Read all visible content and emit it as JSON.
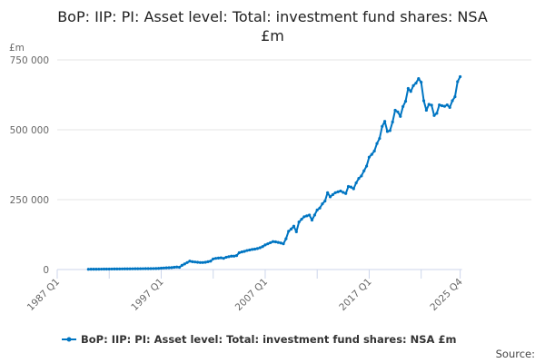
{
  "chart_data": {
    "type": "line",
    "title_lines": [
      "BoP: IIP: PI: Asset level: Total: investment fund shares: NSA",
      "£m"
    ],
    "ylabel": "£m",
    "ylim": [
      0,
      750000
    ],
    "yticks": [
      0,
      250000,
      500000,
      750000
    ],
    "ytick_labels": [
      "0",
      "250 000",
      "500 000",
      "750 000"
    ],
    "xaxis_start": "1987 Q1",
    "xaxis_end": "2025 Q4",
    "xtick_labels": [
      "1987 Q1",
      "1997 Q1",
      "2007 Q1",
      "2017 Q1",
      "2025 Q4"
    ],
    "grid": "horizontal",
    "legend_position": "bottom",
    "color": "#0075c2",
    "source_label": "Source:",
    "series": [
      {
        "name": "BoP: IIP: PI: Asset level: Total: investment fund shares: NSA £m",
        "start": "1990 Q1",
        "frequency": "quarterly",
        "values": [
          1000,
          1100,
          1200,
          1300,
          1400,
          1500,
          1600,
          1700,
          1800,
          1900,
          2000,
          2100,
          2200,
          2300,
          2400,
          2500,
          2600,
          2700,
          2800,
          2900,
          3000,
          3100,
          3200,
          3300,
          3400,
          3500,
          3700,
          4000,
          5000,
          5500,
          6000,
          6500,
          7000,
          8000,
          9000,
          8000,
          15000,
          20000,
          25000,
          30000,
          28000,
          27000,
          26000,
          25000,
          25000,
          26000,
          28000,
          30000,
          38000,
          40000,
          41000,
          42000,
          40000,
          44000,
          46000,
          48000,
          48000,
          50000,
          60000,
          63000,
          65000,
          68000,
          70000,
          72000,
          73000,
          75000,
          78000,
          82000,
          88000,
          92000,
          96000,
          100000,
          99000,
          97000,
          95000,
          92000,
          110000,
          137000,
          145000,
          155000,
          135000,
          170000,
          180000,
          189000,
          192000,
          195000,
          177000,
          195000,
          213000,
          220000,
          235000,
          245000,
          275000,
          260000,
          268000,
          275000,
          278000,
          281000,
          276000,
          272000,
          297000,
          295000,
          289000,
          310000,
          326000,
          335000,
          353000,
          370000,
          402000,
          412000,
          424000,
          451000,
          469000,
          512000,
          530000,
          494000,
          497000,
          528000,
          570000,
          564000,
          548000,
          583000,
          602000,
          648000,
          637000,
          658000,
          667000,
          683000,
          670000,
          604000,
          570000,
          591000,
          588000,
          551000,
          559000,
          589000,
          586000,
          584000,
          589000,
          580000,
          604000,
          618000,
          672000,
          690000
        ]
      }
    ]
  }
}
